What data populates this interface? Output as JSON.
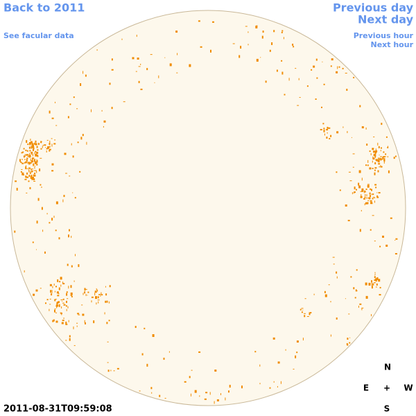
{
  "links": {
    "back": "Back to 2011",
    "facular": "See facular data",
    "previous_day": "Previous day",
    "next_day": "Next day",
    "previous_hour": "Previous hour",
    "next_hour": "Next hour"
  },
  "timestamp": "2011-08-31T09:59:08",
  "compass": {
    "north": "N",
    "east": "E",
    "center": "+",
    "west": "W",
    "south": "S"
  }
}
